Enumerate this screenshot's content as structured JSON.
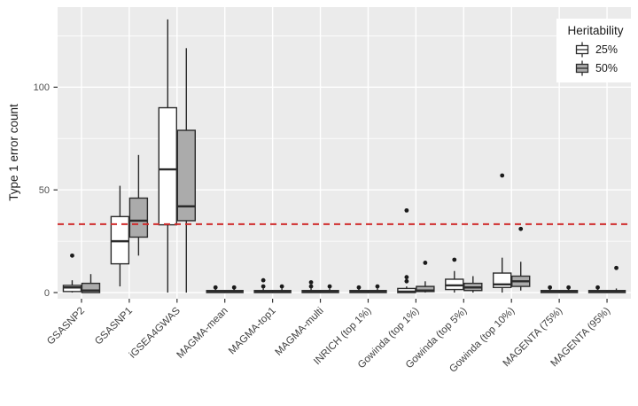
{
  "colors": {
    "background": "#ffffff",
    "panel_bg": "#ebebeb",
    "grid": "#ffffff",
    "box_stroke": "#2b2b2b",
    "outlier": "#1a1a1a",
    "ref_line": "#d02c2c",
    "tick_mark": "#333333",
    "tick_label": "#4d4d4d",
    "x_label": "#404040",
    "axis_title": "#1a1a1a"
  },
  "legend": {
    "title": "Heritability",
    "entries": [
      {
        "label": "25%",
        "fill": "#ffffff"
      },
      {
        "label": "50%",
        "fill": "#ababab"
      }
    ]
  },
  "chart_data": {
    "type": "boxplot",
    "title": "",
    "xlabel": "",
    "ylabel": "Type 1 error count",
    "ylim": [
      -3,
      139
    ],
    "yticks": [
      0,
      50,
      100
    ],
    "y_minor_ticks": [
      25,
      75,
      125
    ],
    "grid": "white major+minor on grey panel",
    "legend_position": "top-right inside panel",
    "reference_line": {
      "y": 33.3,
      "style": "dashed",
      "color": "#d02c2c"
    },
    "categories": [
      "GSASNP2",
      "GSASNP1",
      "iGSEA4GWAS",
      "MAGMA-mean",
      "MAGMA-top1",
      "MAGMA-multi",
      "INRICH (top 1%)",
      "Gowinda (top 1%)",
      "Gowinda (top 5%)",
      "Gowinda (top 10%)",
      "MAGENTA (75%)",
      "MAGENTA (95%)"
    ],
    "series": [
      {
        "name": "25%",
        "fill": "#ffffff",
        "boxes": [
          {
            "whisker_low": 0,
            "q1": 0.5,
            "median": 2.5,
            "q3": 3.5,
            "whisker_high": 6,
            "outliers": [
              18
            ]
          },
          {
            "whisker_low": 3,
            "q1": 14,
            "median": 25,
            "q3": 37,
            "whisker_high": 52,
            "outliers": []
          },
          {
            "whisker_low": 0,
            "q1": 33,
            "median": 60,
            "q3": 90,
            "whisker_high": 133,
            "outliers": []
          },
          {
            "whisker_low": 0,
            "q1": 0,
            "median": 0.5,
            "q3": 1,
            "whisker_high": 2,
            "outliers": [
              2.5
            ]
          },
          {
            "whisker_low": 0,
            "q1": 0,
            "median": 0.5,
            "q3": 1,
            "whisker_high": 2,
            "outliers": [
              3,
              6
            ]
          },
          {
            "whisker_low": 0,
            "q1": 0,
            "median": 0.5,
            "q3": 1,
            "whisker_high": 2,
            "outliers": [
              3,
              5
            ]
          },
          {
            "whisker_low": 0,
            "q1": 0,
            "median": 0.5,
            "q3": 1,
            "whisker_high": 2,
            "outliers": [
              2.5
            ]
          },
          {
            "whisker_low": 0,
            "q1": 0,
            "median": 0.5,
            "q3": 2,
            "whisker_high": 3,
            "outliers": [
              5.5,
              7.5,
              40
            ]
          },
          {
            "whisker_low": 0,
            "q1": 1.5,
            "median": 3.5,
            "q3": 6.5,
            "whisker_high": 10.5,
            "outliers": [
              16
            ]
          },
          {
            "whisker_low": 0,
            "q1": 2.5,
            "median": 4,
            "q3": 9.5,
            "whisker_high": 17,
            "outliers": [
              57
            ]
          },
          {
            "whisker_low": 0,
            "q1": 0,
            "median": 0.5,
            "q3": 1,
            "whisker_high": 2,
            "outliers": [
              2.5
            ]
          },
          {
            "whisker_low": 0,
            "q1": 0,
            "median": 0.5,
            "q3": 1,
            "whisker_high": 2,
            "outliers": [
              2.5
            ]
          }
        ]
      },
      {
        "name": "50%",
        "fill": "#ababab",
        "boxes": [
          {
            "whisker_low": 0,
            "q1": 0,
            "median": 1,
            "q3": 4.5,
            "whisker_high": 9,
            "outliers": []
          },
          {
            "whisker_low": 18,
            "q1": 27,
            "median": 35,
            "q3": 46,
            "whisker_high": 67,
            "outliers": []
          },
          {
            "whisker_low": 0,
            "q1": 35,
            "median": 42,
            "q3": 79,
            "whisker_high": 119,
            "outliers": []
          },
          {
            "whisker_low": 0,
            "q1": 0,
            "median": 0.5,
            "q3": 1,
            "whisker_high": 2,
            "outliers": [
              2.5
            ]
          },
          {
            "whisker_low": 0,
            "q1": 0,
            "median": 0.5,
            "q3": 1,
            "whisker_high": 2,
            "outliers": [
              3
            ]
          },
          {
            "whisker_low": 0,
            "q1": 0,
            "median": 0.5,
            "q3": 1,
            "whisker_high": 2,
            "outliers": [
              3
            ]
          },
          {
            "whisker_low": 0,
            "q1": 0,
            "median": 0.5,
            "q3": 1,
            "whisker_high": 2,
            "outliers": [
              3
            ]
          },
          {
            "whisker_low": 0,
            "q1": 0.5,
            "median": 1,
            "q3": 3,
            "whisker_high": 5.5,
            "outliers": [
              14.5
            ]
          },
          {
            "whisker_low": 0,
            "q1": 1,
            "median": 2.5,
            "q3": 4.5,
            "whisker_high": 8,
            "outliers": []
          },
          {
            "whisker_low": 1,
            "q1": 3,
            "median": 5.5,
            "q3": 8,
            "whisker_high": 15,
            "outliers": [
              31
            ]
          },
          {
            "whisker_low": 0,
            "q1": 0,
            "median": 0.5,
            "q3": 1,
            "whisker_high": 2,
            "outliers": [
              2.5
            ]
          },
          {
            "whisker_low": 0,
            "q1": 0,
            "median": 0.5,
            "q3": 1,
            "whisker_high": 2,
            "outliers": [
              12
            ]
          }
        ]
      }
    ]
  }
}
